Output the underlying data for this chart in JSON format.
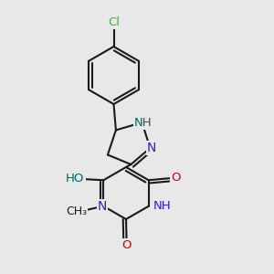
{
  "background_color": "#e8e8e8",
  "bond_color": "#1a1a1a",
  "bond_width": 1.5,
  "cl_color": "#3ab83a",
  "n_color": "#2222cc",
  "nh_color": "#006666",
  "o_color": "#cc0000",
  "c_color": "#1a1a1a",
  "xlim": [
    0.0,
    1.0
  ],
  "ylim": [
    0.0,
    1.0
  ]
}
